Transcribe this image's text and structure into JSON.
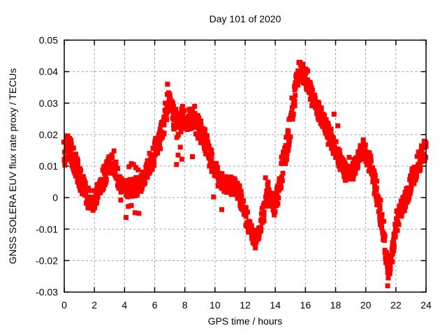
{
  "chart_data": {
    "type": "scatter",
    "title": "Day 101 of 2020",
    "xlabel": "GPS time / hours",
    "ylabel": "GNSS SOLERA EUV flux rate proxy / TECUs",
    "xlim": [
      0,
      24
    ],
    "ylim": [
      -0.03,
      0.05
    ],
    "x_ticks": [
      [
        0,
        "0"
      ],
      [
        2,
        "2"
      ],
      [
        4,
        "4"
      ],
      [
        6,
        "6"
      ],
      [
        8,
        "8"
      ],
      [
        10,
        "10"
      ],
      [
        12,
        "12"
      ],
      [
        14,
        "14"
      ],
      [
        16,
        "16"
      ],
      [
        18,
        "18"
      ],
      [
        20,
        "20"
      ],
      [
        22,
        "22"
      ],
      [
        24,
        "24"
      ]
    ],
    "y_ticks": [
      [
        0.05,
        "0.05"
      ],
      [
        0.04,
        "0.04"
      ],
      [
        0.03,
        "0.03"
      ],
      [
        0.02,
        "0.02"
      ],
      [
        0.01,
        "0.01"
      ],
      [
        0,
        "0"
      ],
      [
        -0.01,
        "-0.01"
      ],
      [
        -0.02,
        "-0.02"
      ],
      [
        -0.03,
        "-0.03"
      ]
    ],
    "grid": true,
    "legend": "none",
    "colors": {
      "marker": "#ff0000",
      "axis": "#000000",
      "grid": "#9e9e9e",
      "background": "#ffffff",
      "text": "#000000"
    },
    "marker": "filled-square",
    "marker_px": 7,
    "series": [
      {
        "name": "EUV flux rate proxy",
        "band": [
          [
            0.0,
            0.0135,
            0.0055
          ],
          [
            0.2,
            0.016,
            0.004
          ],
          [
            0.4,
            0.015,
            0.004
          ],
          [
            0.7,
            0.011,
            0.004
          ],
          [
            1.0,
            0.007,
            0.0035
          ],
          [
            1.3,
            0.003,
            0.0035
          ],
          [
            1.6,
            0.0,
            0.0035
          ],
          [
            1.85,
            -0.001,
            0.0035
          ],
          [
            2.1,
            0.001,
            0.0035
          ],
          [
            2.4,
            0.004,
            0.0035
          ],
          [
            2.7,
            0.0075,
            0.0035
          ],
          [
            3.0,
            0.0105,
            0.003
          ],
          [
            3.2,
            0.0115,
            0.003
          ],
          [
            3.45,
            0.008,
            0.003
          ],
          [
            3.7,
            0.004,
            0.003
          ],
          [
            3.95,
            0.0025,
            0.003
          ],
          [
            4.2,
            0.003,
            0.003
          ],
          [
            4.5,
            0.003,
            0.003
          ],
          [
            4.8,
            0.0035,
            0.003
          ],
          [
            5.1,
            0.0045,
            0.003
          ],
          [
            5.4,
            0.007,
            0.003
          ],
          [
            5.7,
            0.011,
            0.0035
          ],
          [
            6.0,
            0.0145,
            0.0035
          ],
          [
            6.3,
            0.018,
            0.0035
          ],
          [
            6.6,
            0.024,
            0.004
          ],
          [
            6.85,
            0.0305,
            0.0035
          ],
          [
            7.0,
            0.03,
            0.0035
          ],
          [
            7.2,
            0.026,
            0.004
          ],
          [
            7.45,
            0.023,
            0.0045
          ],
          [
            7.7,
            0.0245,
            0.004
          ],
          [
            7.95,
            0.0255,
            0.0035
          ],
          [
            8.2,
            0.025,
            0.0035
          ],
          [
            8.5,
            0.0245,
            0.0035
          ],
          [
            8.8,
            0.023,
            0.0035
          ],
          [
            9.1,
            0.0205,
            0.0035
          ],
          [
            9.4,
            0.017,
            0.0035
          ],
          [
            9.7,
            0.0125,
            0.0035
          ],
          [
            10.0,
            0.009,
            0.003
          ],
          [
            10.3,
            0.006,
            0.0028
          ],
          [
            10.6,
            0.0045,
            0.0028
          ],
          [
            10.9,
            0.004,
            0.0028
          ],
          [
            11.2,
            0.0035,
            0.0028
          ],
          [
            11.5,
            0.002,
            0.003
          ],
          [
            11.8,
            -0.0015,
            0.003
          ],
          [
            12.1,
            -0.007,
            0.003
          ],
          [
            12.4,
            -0.0105,
            0.003
          ],
          [
            12.65,
            -0.014,
            0.0022
          ],
          [
            12.85,
            -0.012,
            0.0025
          ],
          [
            13.1,
            -0.007,
            0.0028
          ],
          [
            13.35,
            -0.0015,
            0.003
          ],
          [
            13.55,
            0.002,
            0.003
          ],
          [
            13.75,
            -0.0005,
            0.0028
          ],
          [
            13.95,
            -0.003,
            0.0026
          ],
          [
            14.15,
            0.001,
            0.003
          ],
          [
            14.4,
            0.008,
            0.004
          ],
          [
            14.65,
            0.0135,
            0.004
          ],
          [
            14.9,
            0.02,
            0.004
          ],
          [
            15.15,
            0.028,
            0.004
          ],
          [
            15.4,
            0.036,
            0.0035
          ],
          [
            15.6,
            0.0405,
            0.003
          ],
          [
            15.8,
            0.0395,
            0.003
          ],
          [
            16.0,
            0.038,
            0.003
          ],
          [
            16.3,
            0.035,
            0.0035
          ],
          [
            16.6,
            0.03,
            0.0035
          ],
          [
            16.9,
            0.0275,
            0.003
          ],
          [
            17.2,
            0.024,
            0.003
          ],
          [
            17.5,
            0.02,
            0.003
          ],
          [
            17.8,
            0.0175,
            0.003
          ],
          [
            18.1,
            0.014,
            0.003
          ],
          [
            18.4,
            0.0105,
            0.0028
          ],
          [
            18.7,
            0.008,
            0.0028
          ],
          [
            19.0,
            0.0075,
            0.0028
          ],
          [
            19.3,
            0.01,
            0.003
          ],
          [
            19.6,
            0.014,
            0.0028
          ],
          [
            19.85,
            0.016,
            0.0028
          ],
          [
            20.1,
            0.013,
            0.0028
          ],
          [
            20.4,
            0.009,
            0.003
          ],
          [
            20.7,
            0.002,
            0.0035
          ],
          [
            20.95,
            -0.004,
            0.0035
          ],
          [
            21.15,
            -0.01,
            0.003
          ],
          [
            21.35,
            -0.018,
            0.0028
          ],
          [
            21.5,
            -0.0245,
            0.0028
          ],
          [
            21.65,
            -0.021,
            0.0028
          ],
          [
            21.85,
            -0.015,
            0.003
          ],
          [
            22.05,
            -0.0075,
            0.0032
          ],
          [
            22.35,
            -0.004,
            0.0032
          ],
          [
            22.65,
            -0.0005,
            0.0032
          ],
          [
            22.95,
            0.004,
            0.0032
          ],
          [
            23.25,
            0.008,
            0.0034
          ],
          [
            23.55,
            0.0115,
            0.0036
          ],
          [
            23.8,
            0.0145,
            0.0038
          ],
          [
            24.0,
            0.016,
            0.004
          ]
        ],
        "outliers": [
          [
            3.3,
            0.0148
          ],
          [
            3.75,
            -0.0008
          ],
          [
            4.1,
            -0.0063
          ],
          [
            4.25,
            -0.0028
          ],
          [
            4.45,
            -0.0025
          ],
          [
            4.7,
            -0.0048
          ],
          [
            4.95,
            -0.005
          ],
          [
            4.3,
            0.0098
          ],
          [
            4.45,
            0.0108
          ],
          [
            4.6,
            0.0105
          ],
          [
            4.75,
            0.0095
          ],
          [
            4.9,
            0.0088
          ],
          [
            6.85,
            0.036
          ],
          [
            7.45,
            0.0105
          ],
          [
            7.55,
            0.0135
          ],
          [
            7.7,
            0.016
          ],
          [
            7.8,
            0.0122
          ],
          [
            7.85,
            0.029
          ],
          [
            8.5,
            0.013
          ],
          [
            8.65,
            0.029
          ],
          [
            9.9,
            0.0002
          ],
          [
            10.45,
            -0.0038
          ],
          [
            13.35,
            0.0063
          ],
          [
            16.15,
            0.0402
          ],
          [
            17.9,
            0.0265
          ],
          [
            18.15,
            0.0228
          ],
          [
            18.9,
            0.0128
          ],
          [
            21.45,
            -0.028
          ]
        ]
      }
    ]
  }
}
